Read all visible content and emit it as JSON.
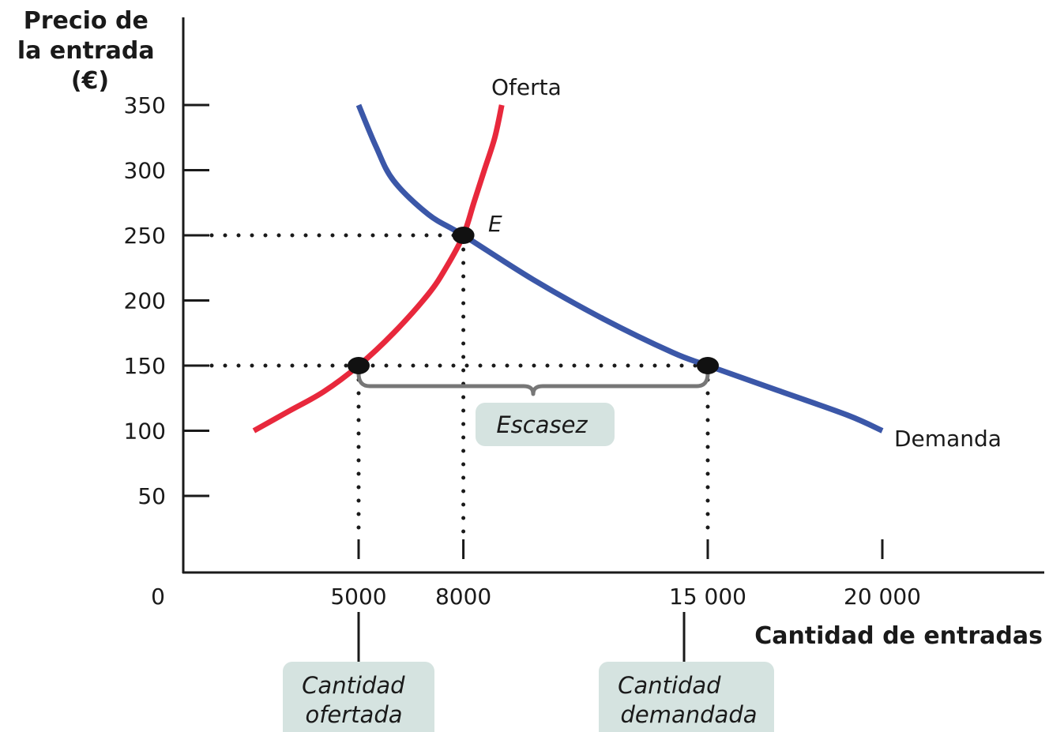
{
  "chart_data": {
    "type": "line",
    "ylabel_lines": [
      "Precio de",
      "la entrada",
      "(€)"
    ],
    "xlabel": "Cantidad de entradas",
    "origin_label": "0",
    "xlim": [
      0,
      25000
    ],
    "ylim": [
      0,
      350
    ],
    "y_ticks": [
      {
        "value": 50,
        "label": "50"
      },
      {
        "value": 100,
        "label": "100"
      },
      {
        "value": 150,
        "label": "150"
      },
      {
        "value": 200,
        "label": "200"
      },
      {
        "value": 250,
        "label": "250"
      },
      {
        "value": 300,
        "label": "300"
      },
      {
        "value": 350,
        "label": "350"
      }
    ],
    "x_ticks": [
      {
        "value": 5000,
        "label": "5000"
      },
      {
        "value": 8000,
        "label": "8000"
      },
      {
        "value": 15000,
        "label": "15 000"
      },
      {
        "value": 20000,
        "label": "20 000"
      }
    ],
    "series": [
      {
        "name": "Oferta",
        "color": "#e8283c",
        "points": [
          [
            2000,
            100
          ],
          [
            3000,
            115
          ],
          [
            4000,
            130
          ],
          [
            5000,
            150
          ],
          [
            6000,
            175
          ],
          [
            7000,
            205
          ],
          [
            7500,
            225
          ],
          [
            8000,
            250
          ],
          [
            8300,
            275
          ],
          [
            8600,
            300
          ],
          [
            8900,
            325
          ],
          [
            9100,
            350
          ]
        ]
      },
      {
        "name": "Demanda",
        "color": "#3b57a8",
        "points": [
          [
            5000,
            350
          ],
          [
            5500,
            318
          ],
          [
            6000,
            292
          ],
          [
            7000,
            266
          ],
          [
            8000,
            250
          ],
          [
            10000,
            216
          ],
          [
            12000,
            186
          ],
          [
            14000,
            160
          ],
          [
            15000,
            150
          ],
          [
            17000,
            131
          ],
          [
            19000,
            112
          ],
          [
            20000,
            100
          ]
        ]
      }
    ],
    "points": [
      {
        "label": "E",
        "x": 8000,
        "y": 250
      },
      {
        "label": "",
        "x": 5000,
        "y": 150
      },
      {
        "label": "",
        "x": 15000,
        "y": 150
      }
    ],
    "annotations": {
      "shortage": "Escasez",
      "qs_lines": [
        "Cantidad",
        "ofertada"
      ],
      "qd_lines": [
        "Cantidad",
        "demandada"
      ]
    },
    "colors": {
      "supply": "#e8283c",
      "demand": "#3b57a8",
      "axis": "#1a1a1a",
      "bracket": "#777777",
      "box": "#d5e3e0"
    }
  }
}
